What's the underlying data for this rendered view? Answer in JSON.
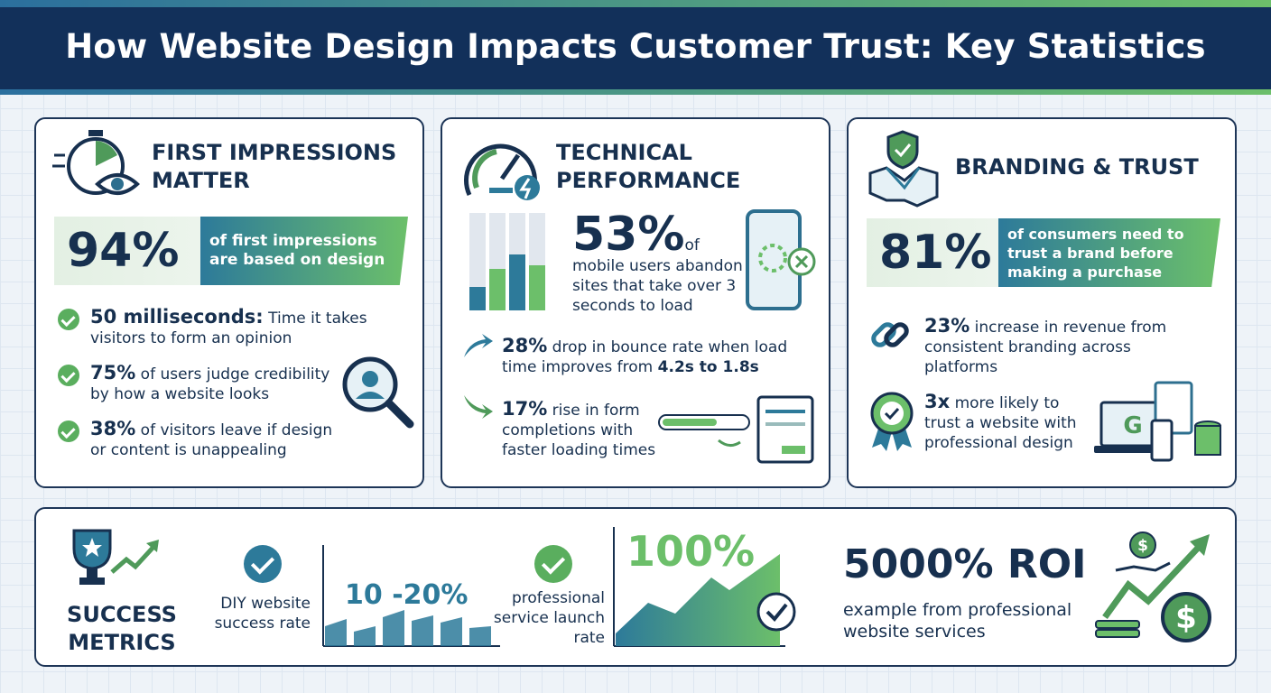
{
  "header": {
    "title": "How Website Design Impacts Customer Trust: Key Statistics"
  },
  "panels": [
    {
      "title": "FIRST IMPRESSIONS MATTER",
      "highlight": {
        "value": "94%",
        "text": "of first impressions are based on design"
      },
      "items": [
        {
          "stat": "50 milliseconds:",
          "text": "Time it takes visitors to form an opinion"
        },
        {
          "stat": "75%",
          "text": "of users judge credibility by how a website looks"
        },
        {
          "stat": "38%",
          "text": "of visitors leave if design or content is unappealing"
        }
      ]
    },
    {
      "title": "TECHNICAL PERFORMANCE",
      "highlight": {
        "value": "53%",
        "text_first": "of",
        "text": "mobile users abandon sites that take over 3 seconds to load"
      },
      "items": [
        {
          "stat": "28%",
          "text": "drop in bounce rate when load time improves from",
          "emphasis": "4.2s to 1.8s"
        },
        {
          "stat": "17%",
          "text": "rise in form completions with faster loading times"
        }
      ]
    },
    {
      "title": "BRANDING & TRUST",
      "highlight": {
        "value": "81%",
        "text": "of consumers need to trust a brand before making a purchase"
      },
      "items": [
        {
          "stat": "23%",
          "text": "increase in revenue from consistent branding across platforms"
        },
        {
          "stat": "3x",
          "text": "more likely to trust a website with professional design"
        }
      ]
    }
  ],
  "metrics": {
    "title": "SUCCESS METRICS",
    "diy": {
      "label": "DIY website success rate",
      "value": "10 -20%"
    },
    "professional": {
      "label": "professional service launch rate",
      "value": "100%"
    },
    "roi": {
      "value": "5000% ROI",
      "label": "example from professional website services"
    }
  }
}
